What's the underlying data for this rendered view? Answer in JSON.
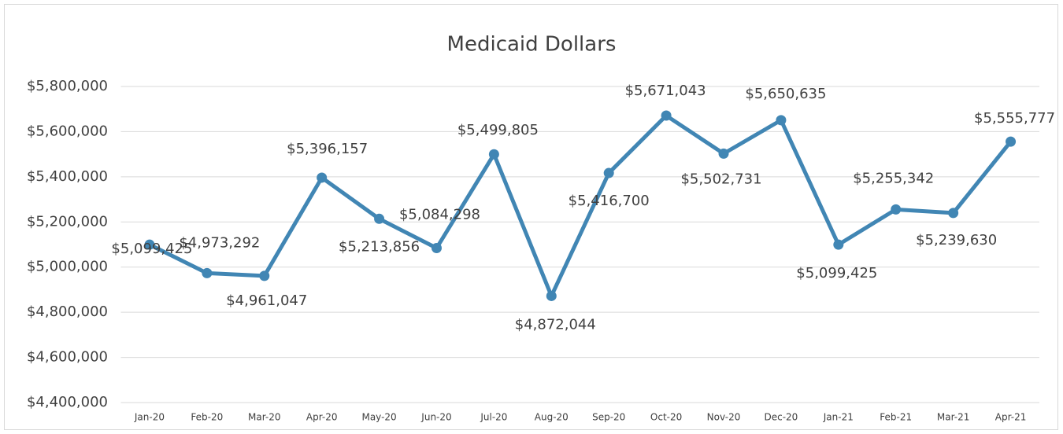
{
  "chart_data": {
    "type": "line",
    "title": "Medicaid Dollars",
    "categories": [
      "Jan-20",
      "Feb-20",
      "Mar-20",
      "Apr-20",
      "May-20",
      "Jun-20",
      "Jul-20",
      "Aug-20",
      "Sep-20",
      "Oct-20",
      "Nov-20",
      "Dec-20",
      "Jan-21",
      "Feb-21",
      "Mar-21",
      "Apr-21"
    ],
    "series": [
      {
        "name": "Medicaid Dollars",
        "color": "#4186b4",
        "values": [
          5099425,
          4973292,
          4961047,
          5396157,
          5213856,
          5084298,
          5499805,
          4872044,
          5416700,
          5671043,
          5502731,
          5650635,
          5099425,
          5255342,
          5239630,
          5555777
        ],
        "value_labels": [
          "$5,099,425",
          "$4,973,292",
          "$4,961,047",
          "$5,396,157",
          "$5,213,856",
          "$5,084,298",
          "$5,499,805",
          "$4,872,044",
          "$5,416,700",
          "$5,671,043",
          "$5,502,731",
          "$5,650,635",
          "$5,099,425",
          "$5,255,342",
          "$5,239,630",
          "$5,555,777"
        ]
      }
    ],
    "ylim": [
      4400000,
      5800000
    ],
    "yticks": [
      {
        "value": 4400000,
        "label": "$4,400,000"
      },
      {
        "value": 4600000,
        "label": "$4,600,000"
      },
      {
        "value": 4800000,
        "label": "$4,800,000"
      },
      {
        "value": 5000000,
        "label": "$5,000,000"
      },
      {
        "value": 5200000,
        "label": "$5,200,000"
      },
      {
        "value": 5400000,
        "label": "$5,400,000"
      },
      {
        "value": 5600000,
        "label": "$5,600,000"
      },
      {
        "value": 5800000,
        "label": "$5,800,000"
      }
    ],
    "grid": true
  }
}
